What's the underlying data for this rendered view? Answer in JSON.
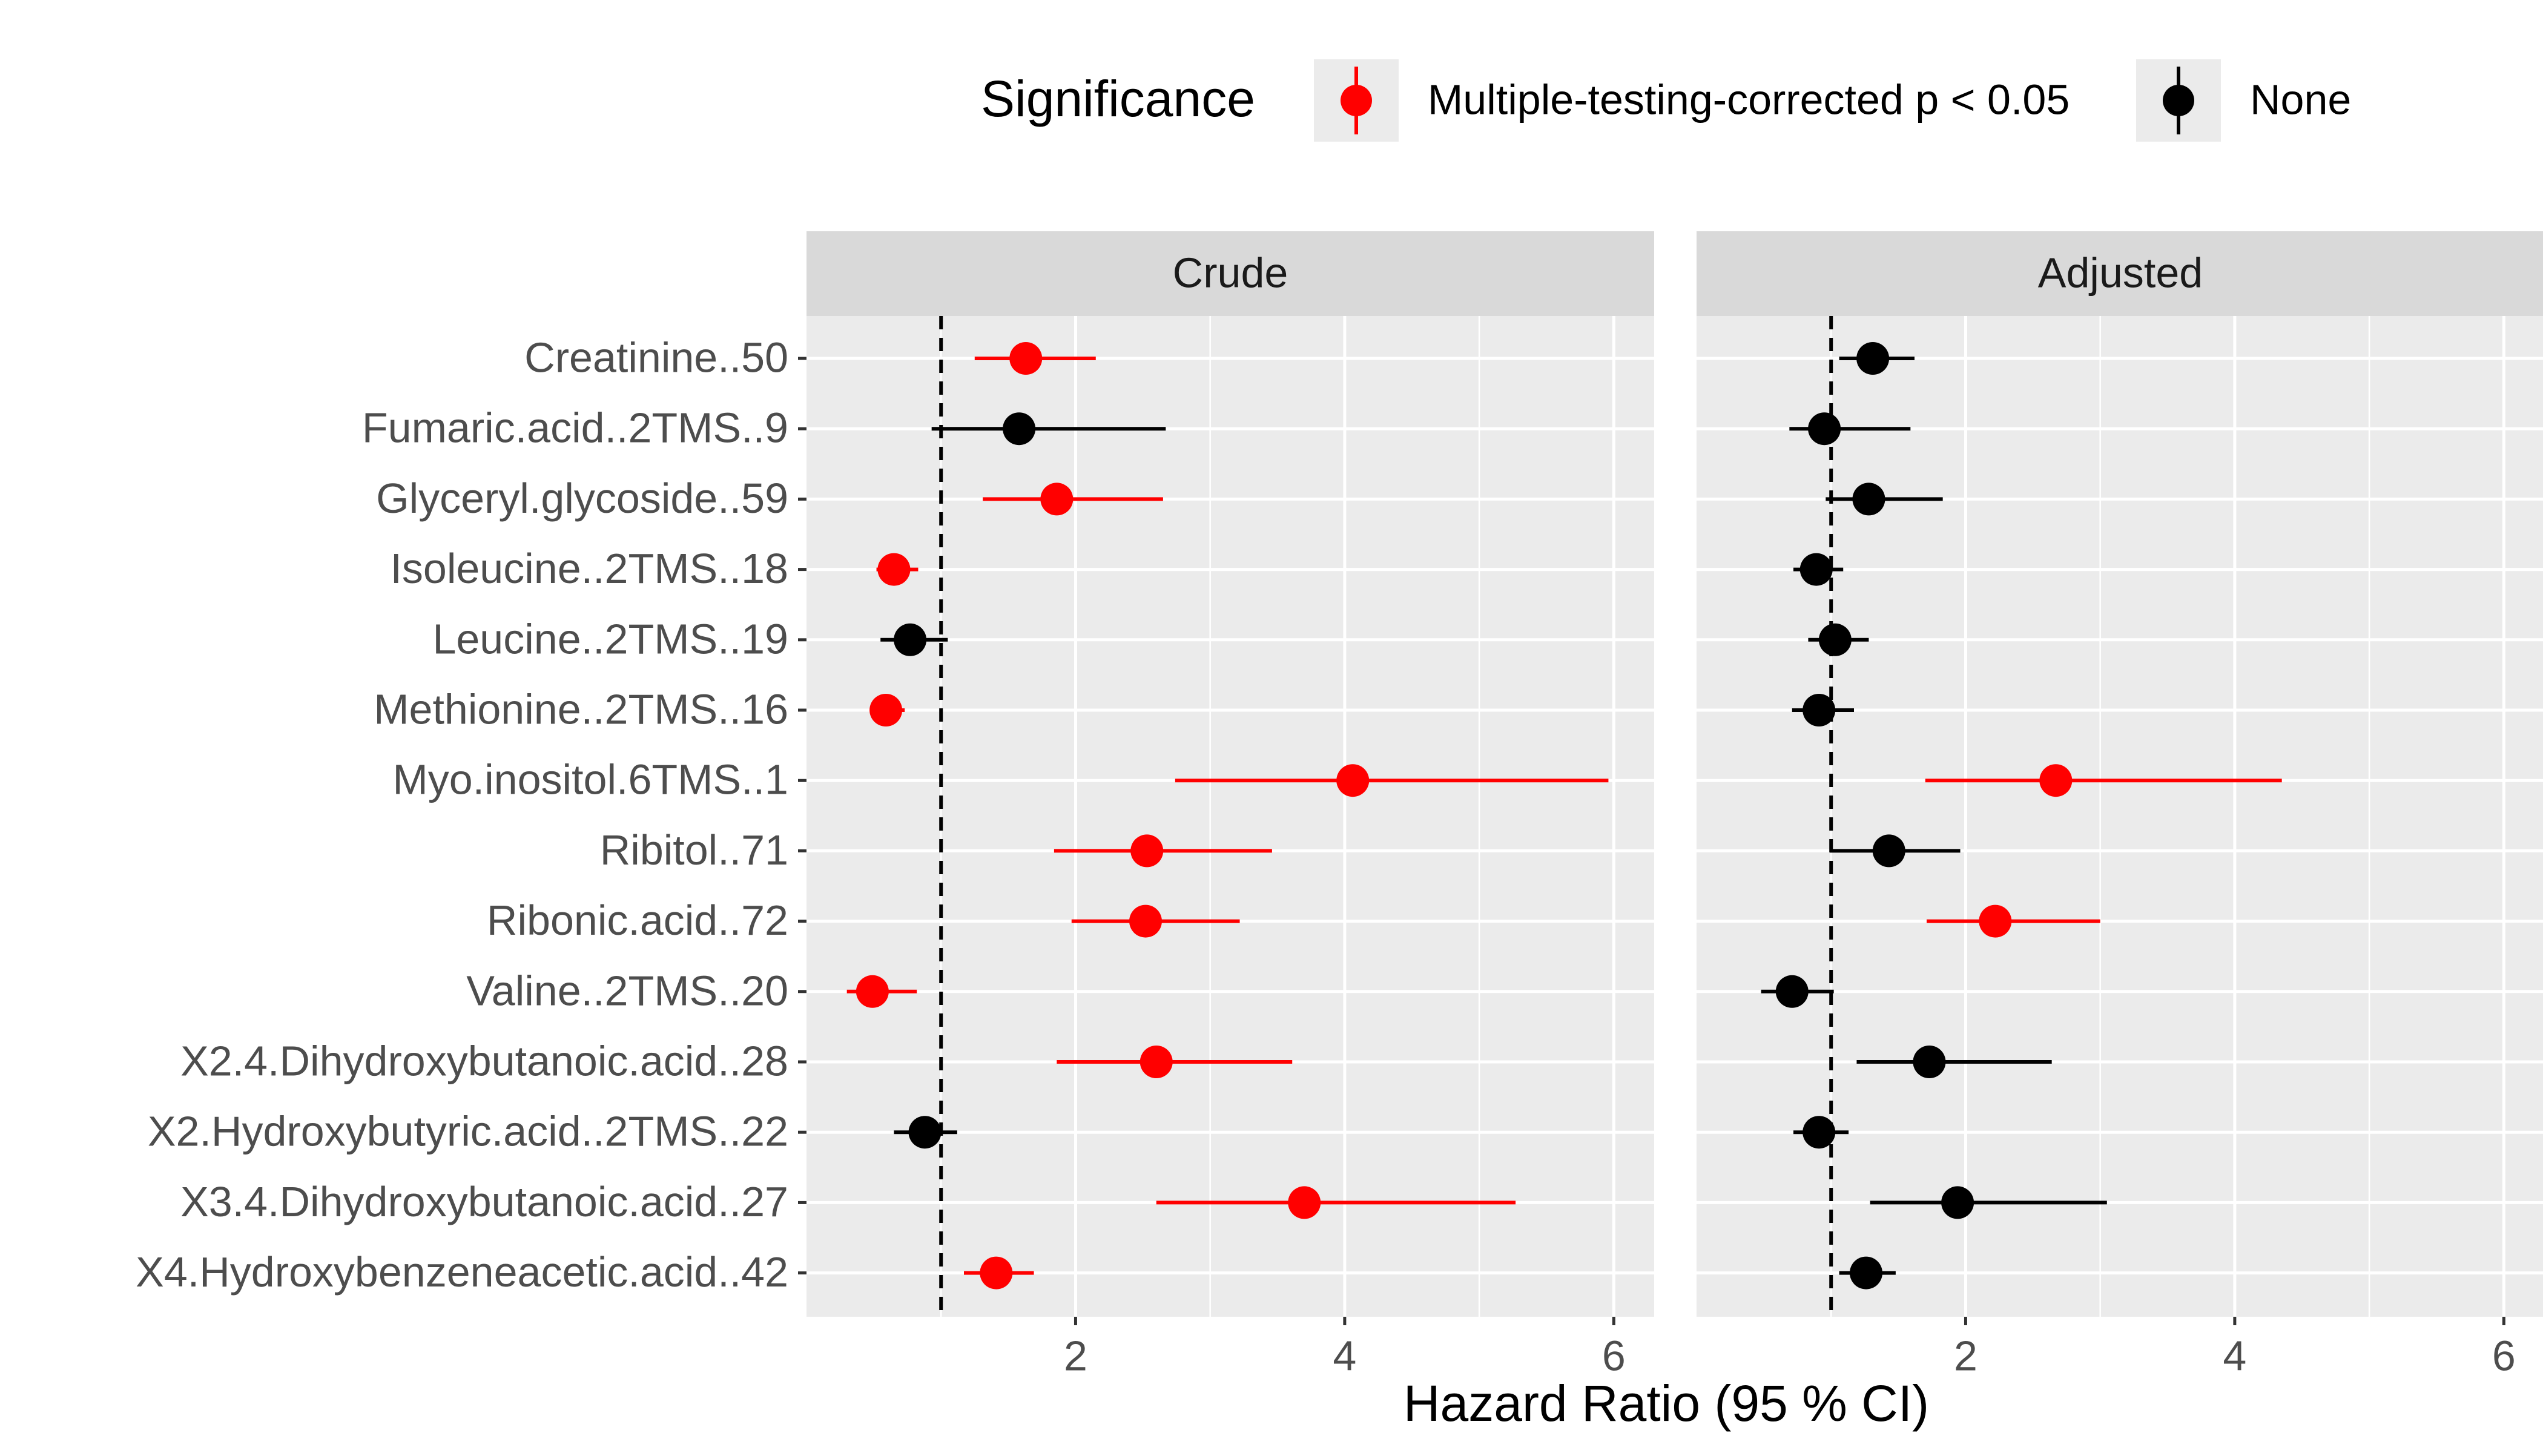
{
  "legend": {
    "title": "Significance",
    "items": [
      {
        "label": "Multiple-testing-corrected p < 0.05",
        "color": "#ff0000"
      },
      {
        "label": "None",
        "color": "#000000"
      }
    ]
  },
  "chart_data": {
    "type": "scatter",
    "subtype": "forest-plot",
    "xlabel": "Hazard Ratio (95 % CI)",
    "ylabel": "",
    "xlim": [
      0.0,
      6.3
    ],
    "xticks": [
      2,
      4,
      6
    ],
    "reference_line": 1,
    "grid": true,
    "legend_position": "top",
    "categories": [
      "Creatinine..50",
      "Fumaric.acid..2TMS..9",
      "Glyceryl.glycoside..59",
      "Isoleucine..2TMS..18",
      "Leucine..2TMS..19",
      "Methionine..2TMS..16",
      "Myo.inositol.6TMS..1",
      "Ribitol..71",
      "Ribonic.acid..72",
      "Valine..2TMS..20",
      "X2.4.Dihydroxybutanoic.acid..28",
      "X2.Hydroxybutyric.acid..2TMS..22",
      "X3.4.Dihydroxybutanoic.acid..27",
      "X4.Hydroxybenzeneacetic.acid..42"
    ],
    "panels": [
      {
        "name": "Crude",
        "hr": [
          1.63,
          1.58,
          1.86,
          0.65,
          0.77,
          0.59,
          4.06,
          2.53,
          2.52,
          0.49,
          2.6,
          0.88,
          3.7,
          1.41
        ],
        "lower": [
          1.25,
          0.93,
          1.31,
          0.52,
          0.55,
          0.49,
          2.74,
          1.84,
          1.97,
          0.3,
          1.86,
          0.65,
          2.6,
          1.17
        ],
        "upper": [
          2.15,
          2.67,
          2.65,
          0.83,
          1.05,
          0.73,
          5.96,
          3.46,
          3.22,
          0.82,
          3.61,
          1.12,
          5.27,
          1.69
        ],
        "significant": [
          true,
          false,
          true,
          true,
          false,
          true,
          true,
          true,
          true,
          true,
          true,
          false,
          true,
          true
        ]
      },
      {
        "name": "Adjusted",
        "hr": [
          1.31,
          0.95,
          1.28,
          0.89,
          1.03,
          0.91,
          2.67,
          1.43,
          2.22,
          0.71,
          1.73,
          0.91,
          1.94,
          1.26
        ],
        "lower": [
          1.06,
          0.69,
          0.96,
          0.72,
          0.83,
          0.71,
          1.7,
          0.99,
          1.71,
          0.48,
          1.19,
          0.72,
          1.29,
          1.06
        ],
        "upper": [
          1.62,
          1.59,
          1.83,
          1.09,
          1.28,
          1.17,
          4.35,
          1.96,
          3.0,
          1.02,
          2.64,
          1.13,
          3.05,
          1.48
        ],
        "significant": [
          false,
          false,
          false,
          false,
          false,
          false,
          true,
          false,
          true,
          false,
          false,
          false,
          false,
          false
        ]
      }
    ]
  }
}
